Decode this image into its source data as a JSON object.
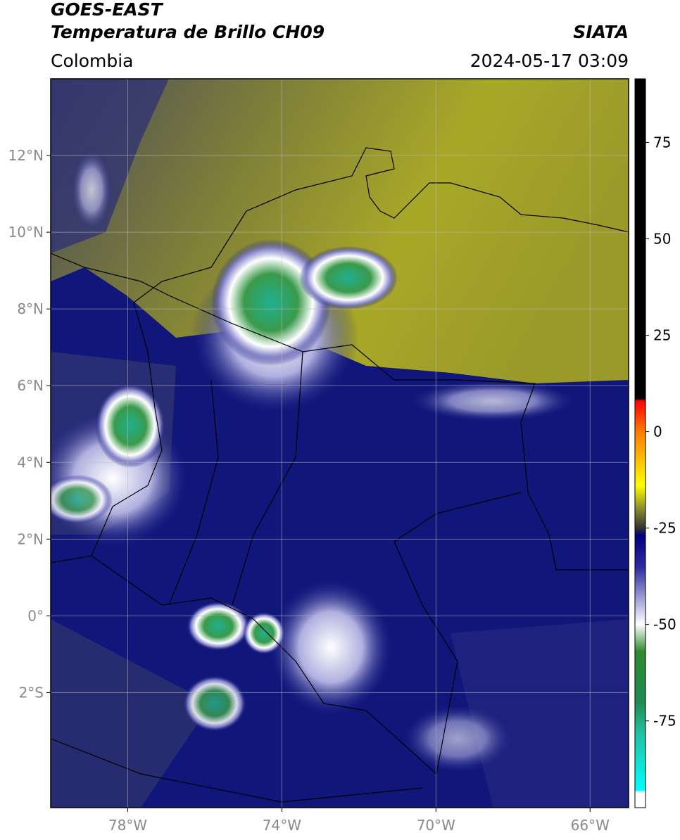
{
  "header": {
    "title_line1": "GOES-EAST",
    "title_line2": "Temperatura de Brillo CH09",
    "region": "Colombia",
    "source": "SIATA",
    "timestamp": "2024-05-17 03:09"
  },
  "map": {
    "xlim": [
      -80,
      -65
    ],
    "ylim": [
      -5,
      14
    ],
    "xticks": [
      {
        "value": -78,
        "label": "78°W"
      },
      {
        "value": -74,
        "label": "74°W"
      },
      {
        "value": -70,
        "label": "70°W"
      },
      {
        "value": -66,
        "label": "66°W"
      }
    ],
    "yticks": [
      {
        "value": 12,
        "label": "12°N"
      },
      {
        "value": 10,
        "label": "10°N"
      },
      {
        "value": 8,
        "label": "8°N"
      },
      {
        "value": 6,
        "label": "6°N"
      },
      {
        "value": 4,
        "label": "4°N"
      },
      {
        "value": 2,
        "label": "2°N"
      },
      {
        "value": 0,
        "label": "0°"
      },
      {
        "value": -2,
        "label": "2°S"
      }
    ],
    "grid": true
  },
  "colorbar": {
    "lim": [
      -97.5,
      91.5
    ],
    "ticks": [
      75,
      50,
      25,
      0,
      -25,
      -50,
      -75
    ],
    "colormap": [
      {
        "value": 91.5,
        "color": "#000000"
      },
      {
        "value": 8.5,
        "color": "#000000"
      },
      {
        "value": 8,
        "color": "#ff0000"
      },
      {
        "value": 0,
        "color": "#ff7a00"
      },
      {
        "value": -14,
        "color": "#ffff00"
      },
      {
        "value": -20,
        "color": "#8a8a30"
      },
      {
        "value": -25,
        "color": "#333333"
      },
      {
        "value": -27,
        "color": "#000080"
      },
      {
        "value": -35,
        "color": "#2a2aa0"
      },
      {
        "value": -50,
        "color": "#ffffff"
      },
      {
        "value": -57,
        "color": "#2f8a2f"
      },
      {
        "value": -70,
        "color": "#208a50"
      },
      {
        "value": -78,
        "color": "#20c0a0"
      },
      {
        "value": -93,
        "color": "#00ffff"
      },
      {
        "value": -93.5,
        "color": "#ffffff"
      },
      {
        "value": -97.5,
        "color": "#ffffff"
      }
    ]
  }
}
